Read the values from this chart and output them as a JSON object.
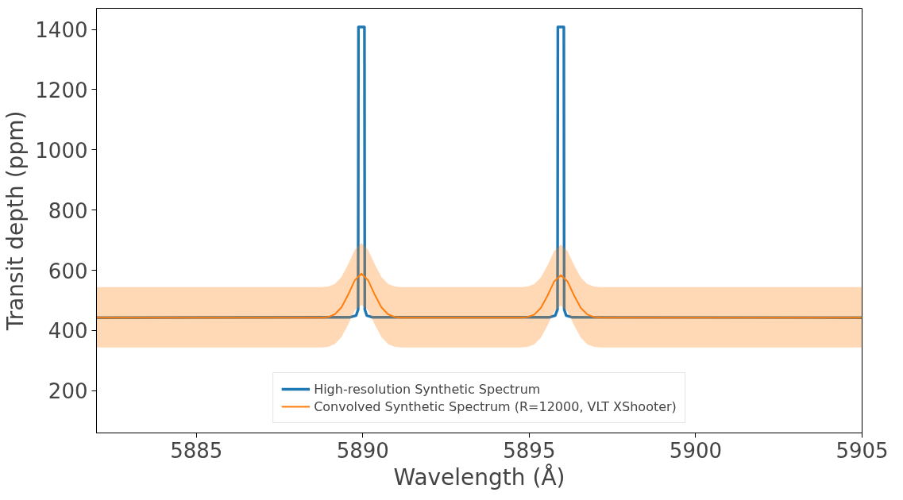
{
  "chart_data": {
    "type": "line",
    "xlabel": "Wavelength (Å)",
    "ylabel": "Transit depth (ppm)",
    "xlim": [
      5882,
      5905
    ],
    "ylim": [
      60,
      1470
    ],
    "xticks": [
      5885,
      5890,
      5895,
      5900,
      5905
    ],
    "yticks": [
      200,
      400,
      600,
      800,
      1000,
      1200,
      1400
    ],
    "grid": false,
    "legend": "bottom",
    "line_style": "solid",
    "marker": "none",
    "series": [
      {
        "name": "High-resolution Synthetic Spectrum",
        "color": "#1f77b4",
        "x": [
          5882,
          5889.6,
          5889.8,
          5889.86,
          5889.87,
          5890.05,
          5890.06,
          5890.12,
          5890.3,
          5895.6,
          5895.78,
          5895.85,
          5895.86,
          5896.04,
          5896.05,
          5896.11,
          5896.3,
          5905
        ],
        "values": [
          443,
          444,
          450,
          470,
          1408,
          1408,
          470,
          450,
          444,
          444,
          450,
          470,
          1408,
          1408,
          470,
          450,
          444,
          443
        ]
      },
      {
        "name": "Convolved Synthetic Spectrum (R=12000, VLT XShooter)",
        "color": "#ff7f0e",
        "x": [
          5882,
          5888.76,
          5888.96,
          5889.16,
          5889.36,
          5889.56,
          5889.76,
          5889.96,
          5890.16,
          5890.36,
          5890.56,
          5890.76,
          5890.96,
          5891.16,
          5894.75,
          5894.95,
          5895.15,
          5895.35,
          5895.55,
          5895.75,
          5895.95,
          5896.15,
          5896.35,
          5896.55,
          5896.75,
          5896.95,
          5897.15,
          5905
        ],
        "values": [
          443,
          443,
          445,
          454,
          477,
          519,
          567,
          589,
          567,
          519,
          477,
          454,
          445,
          443,
          443,
          445,
          453,
          475,
          516,
          563,
          584,
          563,
          516,
          475,
          453,
          445,
          443,
          443
        ],
        "lower": [
          344,
          344,
          346,
          355,
          378,
          420,
          467,
          485,
          467,
          420,
          378,
          355,
          346,
          344,
          344,
          346,
          354,
          376,
          417,
          463,
          483,
          463,
          417,
          376,
          354,
          346,
          344,
          344
        ],
        "upper": [
          544,
          544,
          546,
          555,
          578,
          620,
          668,
          691,
          668,
          620,
          578,
          555,
          546,
          544,
          544,
          546,
          554,
          576,
          617,
          664,
          685,
          664,
          617,
          576,
          554,
          546,
          544,
          544
        ]
      }
    ]
  }
}
